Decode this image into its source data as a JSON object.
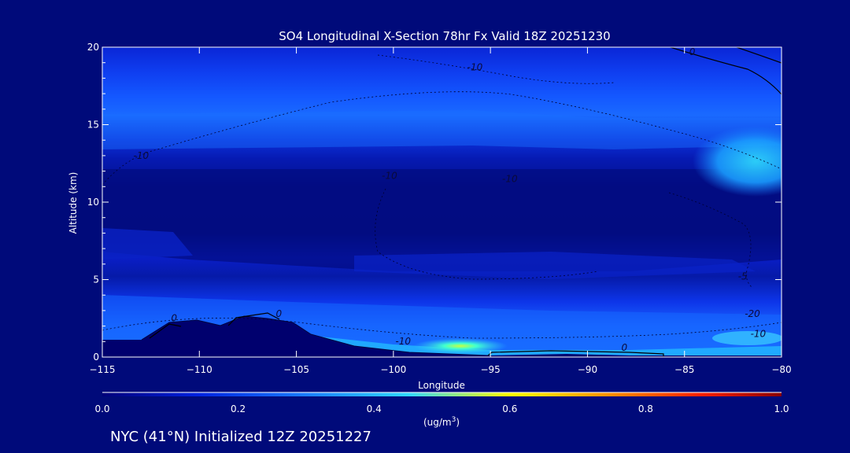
{
  "chart_data": {
    "type": "heatmap",
    "title": "SO4 Longitudinal X-Section 78hr  Fx Valid 18Z 20251230",
    "xlabel": "Longitude",
    "ylabel": "Altitude (km)",
    "xlim": [
      -115,
      -80
    ],
    "ylim": [
      0,
      20
    ],
    "x_ticks": [
      -115,
      -110,
      -105,
      -100,
      -95,
      -90,
      -85,
      -80
    ],
    "x_tick_labels": [
      "-115",
      "-110",
      "-105",
      "-100",
      "-95",
      "-90",
      "-85",
      "-80"
    ],
    "y_ticks": [
      0,
      5,
      10,
      15,
      20
    ],
    "y_tick_labels": [
      "0",
      "5",
      "10",
      "15",
      "20"
    ],
    "colorbar": {
      "range": [
        0.0,
        1.0
      ],
      "ticks": [
        0.0,
        0.2,
        0.4,
        0.6,
        0.8,
        1.0
      ],
      "tick_labels": [
        "0.0",
        "0.2",
        "0.4",
        "0.6",
        "0.8",
        "1.0"
      ],
      "label_prefix": "(ug/m",
      "label_sup": "3",
      "label_suffix": ")",
      "colors": [
        "#00007a",
        "#0022e0",
        "#1a7dff",
        "#30d8ff",
        "#ffff00",
        "#ff8c00",
        "#ff2000",
        "#8a0000"
      ]
    },
    "concentration_bands": [
      {
        "altitude_km": 19.5,
        "value": 0.1
      },
      {
        "altitude_km": 17.5,
        "value": 0.13
      },
      {
        "altitude_km": 15.5,
        "value": 0.2
      },
      {
        "altitude_km": 13.5,
        "value": 0.16
      },
      {
        "altitude_km": 10.0,
        "value": 0.03
      },
      {
        "altitude_km": 5.5,
        "value": 0.05
      },
      {
        "altitude_km": 3.0,
        "value": 0.15
      },
      {
        "altitude_km": 0.8,
        "value": 0.45
      }
    ],
    "contour_labels": [
      {
        "text": "-10",
        "lon": -95.8,
        "alt": 18.5
      },
      {
        "text": "-10",
        "lon": -113.0,
        "alt": 12.8
      },
      {
        "text": "-10",
        "lon": -100.2,
        "alt": 11.5
      },
      {
        "text": "-10",
        "lon": -94.0,
        "alt": 11.3
      },
      {
        "text": "0",
        "lon": -84.6,
        "alt": 19.5
      },
      {
        "text": "-5",
        "lon": -82.0,
        "alt": 5.0
      },
      {
        "text": "-20",
        "lon": -81.5,
        "alt": 2.6
      },
      {
        "text": "-10",
        "lon": -81.2,
        "alt": 1.3
      },
      {
        "text": "-10",
        "lon": -99.5,
        "alt": 0.8
      },
      {
        "text": "0",
        "lon": -111.3,
        "alt": 2.3
      },
      {
        "text": "0",
        "lon": -105.9,
        "alt": 2.6
      },
      {
        "text": "0",
        "lon": -88.1,
        "alt": 0.4
      }
    ]
  },
  "footer_text": "NYC (41°N) Initialized 12Z 20251227"
}
